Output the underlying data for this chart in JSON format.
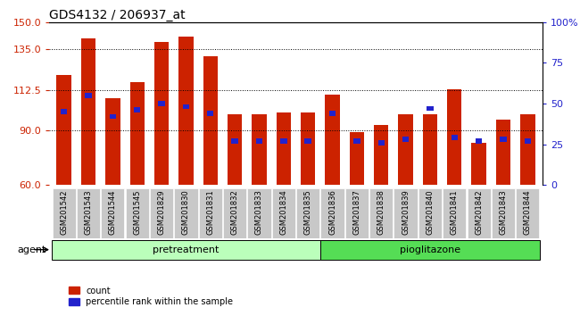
{
  "title": "GDS4132 / 206937_at",
  "samples": [
    "GSM201542",
    "GSM201543",
    "GSM201544",
    "GSM201545",
    "GSM201829",
    "GSM201830",
    "GSM201831",
    "GSM201832",
    "GSM201833",
    "GSM201834",
    "GSM201835",
    "GSM201836",
    "GSM201837",
    "GSM201838",
    "GSM201839",
    "GSM201840",
    "GSM201841",
    "GSM201842",
    "GSM201843",
    "GSM201844"
  ],
  "count_values": [
    121,
    141,
    108,
    117,
    139,
    142,
    131,
    99,
    99,
    100,
    100,
    110,
    89,
    93,
    99,
    99,
    113,
    83,
    96,
    99
  ],
  "percentile_values": [
    45,
    55,
    42,
    46,
    50,
    48,
    44,
    27,
    27,
    27,
    27,
    44,
    27,
    26,
    28,
    47,
    29,
    27,
    28,
    27
  ],
  "pretreatment_count": 11,
  "pioglitazone_count": 9,
  "ylim_left": [
    60,
    150
  ],
  "yticks_left": [
    60,
    90,
    112.5,
    135,
    150
  ],
  "ylim_right": [
    0,
    100
  ],
  "yticks_right": [
    0,
    25,
    50,
    75,
    100
  ],
  "bar_color_red": "#cc2200",
  "bar_color_blue": "#2222cc",
  "bar_width": 0.6,
  "bg_xtick": "#c8c8c8",
  "pretreatment_color": "#bbffbb",
  "pioglitazone_color": "#55dd55",
  "agent_label": "agent",
  "pretreatment_label": "pretreatment",
  "pioglitazone_label": "pioglitazone",
  "legend_count": "count",
  "legend_percentile": "percentile rank within the sample",
  "left_axis_color": "#cc2200",
  "right_axis_color": "#2222cc",
  "title_fontsize": 10
}
